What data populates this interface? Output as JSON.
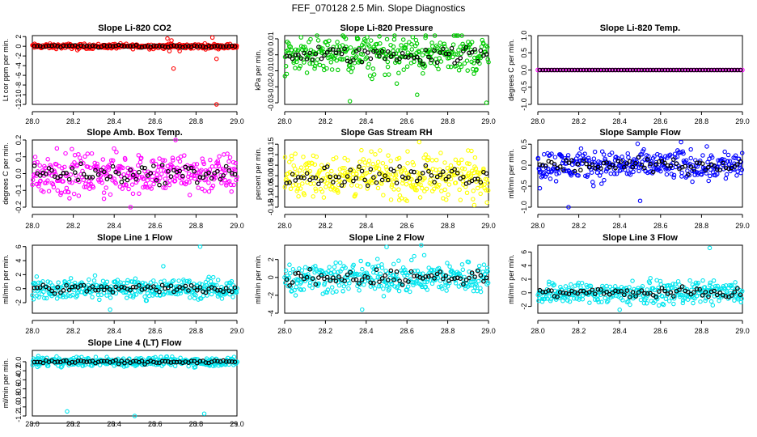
{
  "page_title": "FEF_070128  2.5 Min. Slope Diagnostics",
  "colors": {
    "background": "#ffffff",
    "axis": "#000000",
    "reference_points": "#000000"
  },
  "chart_data": [
    {
      "id": "co2",
      "type": "scatter",
      "title": "Slope Li-820 CO2",
      "ylabel": "Lt cor ppm per min.",
      "color": "#ff0000",
      "xlim": [
        28.0,
        29.0
      ],
      "ylim": [
        -12,
        2.2
      ],
      "yticks": [
        -12,
        -10,
        -8,
        -6,
        -4,
        -2,
        0,
        2
      ],
      "ytick_labels": [
        "-12",
        "-10",
        "-8",
        "-6",
        "-4",
        "-2",
        "0",
        "2"
      ],
      "xticks": [
        28.0,
        28.2,
        28.4,
        28.6,
        28.8,
        29.0
      ],
      "xtick_labels": [
        "28.0",
        "28.2",
        "28.4",
        "28.6",
        "28.8",
        "29.0"
      ],
      "typical_spread": 0.25,
      "outliers": [
        [
          28.66,
          1.6
        ],
        [
          28.68,
          1.2
        ],
        [
          28.67,
          -1.0
        ],
        [
          28.69,
          -4.6
        ],
        [
          28.72,
          -1.0
        ],
        [
          28.9,
          -2.6
        ],
        [
          28.9,
          -12.0
        ],
        [
          28.88,
          1.8
        ],
        [
          28.22,
          -0.8
        ]
      ]
    },
    {
      "id": "pressure",
      "type": "scatter",
      "title": "Slope Li-820 Pressure",
      "ylabel": "kPa per min.",
      "color": "#00cc00",
      "xlim": [
        28.0,
        29.0
      ],
      "ylim": [
        -0.031,
        0.012
      ],
      "yticks": [
        -0.03,
        -0.02,
        -0.01,
        0,
        0.01
      ],
      "ytick_labels": [
        "-0.03",
        "-0.02",
        "-0.01",
        "0.00",
        "0.01"
      ],
      "xticks": [
        28.0,
        28.2,
        28.4,
        28.6,
        28.8,
        29.0
      ],
      "xtick_labels": [
        "28.0",
        "28.2",
        "28.4",
        "28.6",
        "28.8",
        "29.0"
      ],
      "typical_spread": 0.006,
      "outliers": [
        [
          28.3,
          0.01
        ],
        [
          28.32,
          -0.029
        ],
        [
          28.65,
          -0.025
        ],
        [
          28.99,
          -0.03
        ],
        [
          28.01,
          -0.012
        ],
        [
          28.55,
          -0.018
        ]
      ]
    },
    {
      "id": "temp",
      "type": "scatter",
      "title": "Slope Li-820 Temp.",
      "ylabel": "degrees C per min.",
      "color": "#ff00ff",
      "xlim": [
        28.0,
        29.0
      ],
      "ylim": [
        -1.0,
        1.0
      ],
      "yticks": [
        -1,
        -0.5,
        0,
        0.5,
        1
      ],
      "ytick_labels": [
        "-1.0",
        "-0.5",
        "0.0",
        "0.5",
        "1.0"
      ],
      "xticks": [
        28.0,
        28.2,
        28.4,
        28.6,
        28.8,
        29.0
      ],
      "xtick_labels": [
        "28.0",
        "28.2",
        "28.4",
        "28.6",
        "28.8",
        "29.0"
      ],
      "typical_spread": 0.0,
      "outliers": []
    },
    {
      "id": "box_temp",
      "type": "scatter",
      "title": "Slope Amb. Box Temp.",
      "ylabel": "degrees C per min.",
      "color": "#ff00ff",
      "xlim": [
        28.0,
        29.0
      ],
      "ylim": [
        -0.2,
        0.2
      ],
      "yticks": [
        -0.2,
        -0.1,
        0,
        0.1,
        0.2
      ],
      "ytick_labels": [
        "-0.2",
        "-0.1",
        "0.0",
        "0.1",
        "0.2"
      ],
      "xticks": [
        28.0,
        28.2,
        28.4,
        28.6,
        28.8,
        29.0
      ],
      "xtick_labels": [
        "28.0",
        "28.2",
        "28.4",
        "28.6",
        "28.8",
        "29.0"
      ],
      "typical_spread": 0.06,
      "outliers": [
        [
          28.48,
          -0.2
        ],
        [
          28.7,
          0.2
        ],
        [
          28.12,
          0.15
        ],
        [
          28.35,
          -0.15
        ]
      ]
    },
    {
      "id": "rh",
      "type": "scatter",
      "title": "Slope Gas Stream RH",
      "ylabel": "percent per min.",
      "color": "#ffff00",
      "xlim": [
        28.0,
        29.0
      ],
      "ylim": [
        -0.15,
        0.17
      ],
      "yticks": [
        -0.15,
        -0.1,
        -0.05,
        0,
        0.05,
        0.1,
        0.15
      ],
      "ytick_labels": [
        "-0.15",
        "-0.10",
        "-0.05",
        "0.00",
        "0.05",
        "0.10",
        "0.15"
      ],
      "xticks": [
        28.0,
        28.2,
        28.4,
        28.6,
        28.8,
        29.0
      ],
      "xtick_labels": [
        "28.0",
        "28.2",
        "28.4",
        "28.6",
        "28.8",
        "29.0"
      ],
      "typical_spread": 0.05,
      "outliers": [
        [
          28.66,
          0.16
        ],
        [
          28.6,
          -0.12
        ],
        [
          28.93,
          -0.14
        ],
        [
          28.9,
          0.12
        ]
      ]
    },
    {
      "id": "sample_flow",
      "type": "scatter",
      "title": "Slope Sample Flow",
      "ylabel": "ml/min per min.",
      "color": "#0000ff",
      "xlim": [
        28.0,
        29.0
      ],
      "ylim": [
        -1.0,
        0.6
      ],
      "yticks": [
        -1,
        -0.5,
        0,
        0.5
      ],
      "ytick_labels": [
        "-1.0",
        "-0.5",
        "0.0",
        "0.5"
      ],
      "xticks": [
        28.0,
        28.2,
        28.4,
        28.6,
        28.8,
        29.0
      ],
      "xtick_labels": [
        "28.0",
        "28.2",
        "28.4",
        "28.6",
        "28.8",
        "29.0"
      ],
      "typical_spread": 0.18,
      "outliers": [
        [
          28.15,
          -1.0
        ],
        [
          28.5,
          -0.85
        ],
        [
          28.7,
          0.55
        ],
        [
          28.01,
          -0.55
        ]
      ]
    },
    {
      "id": "line1",
      "type": "scatter",
      "title": "Slope Line 1 Flow",
      "ylabel": "ml/min per min.",
      "color": "#00e5ee",
      "xlim": [
        28.0,
        29.0
      ],
      "ylim": [
        -3.5,
        6.2
      ],
      "yticks": [
        -2,
        0,
        2,
        4,
        6
      ],
      "ytick_labels": [
        "-2",
        "0",
        "2",
        "4",
        "6"
      ],
      "xticks": [
        28.0,
        28.2,
        28.4,
        28.6,
        28.8,
        29.0
      ],
      "xtick_labels": [
        "28.0",
        "28.2",
        "28.4",
        "28.6",
        "28.8",
        "29.0"
      ],
      "typical_spread": 0.7,
      "outliers": [
        [
          28.82,
          6.0
        ],
        [
          28.38,
          -3.0
        ],
        [
          28.64,
          3.2
        ]
      ]
    },
    {
      "id": "line2",
      "type": "scatter",
      "title": "Slope Line 2 Flow",
      "ylabel": "ml/min per min.",
      "color": "#00e5ee",
      "xlim": [
        28.0,
        29.0
      ],
      "ylim": [
        -4,
        3.6
      ],
      "yticks": [
        -4,
        -2,
        0,
        2
      ],
      "ytick_labels": [
        "-4",
        "-2",
        "0",
        "2"
      ],
      "xticks": [
        28.0,
        28.2,
        28.4,
        28.6,
        28.8,
        29.0
      ],
      "xtick_labels": [
        "28.0",
        "28.2",
        "28.4",
        "28.6",
        "28.8",
        "29.0"
      ],
      "typical_spread": 0.9,
      "outliers": [
        [
          28.38,
          -3.6
        ],
        [
          28.5,
          3.4
        ],
        [
          28.67,
          3.6
        ]
      ]
    },
    {
      "id": "line3",
      "type": "scatter",
      "title": "Slope Line 3 Flow",
      "ylabel": "ml/min per min.",
      "color": "#00e5ee",
      "xlim": [
        28.0,
        29.0
      ],
      "ylim": [
        -3,
        7
      ],
      "yticks": [
        -2,
        0,
        2,
        4,
        6
      ],
      "ytick_labels": [
        "-2",
        "0",
        "2",
        "4",
        "6"
      ],
      "xticks": [
        28.0,
        28.2,
        28.4,
        28.6,
        28.8,
        29.0
      ],
      "xtick_labels": [
        "28.0",
        "28.2",
        "28.4",
        "28.6",
        "28.8",
        "29.0"
      ],
      "typical_spread": 0.8,
      "outliers": [
        [
          28.84,
          6.6
        ],
        [
          28.4,
          -2.5
        ]
      ]
    },
    {
      "id": "line4",
      "type": "scatter",
      "title": "Slope Line 4 (LT) Flow",
      "ylabel": "ml/min per min.",
      "color": "#00e5ee",
      "xlim": [
        28.0,
        29.0
      ],
      "ylim": [
        -1.2,
        0.25
      ],
      "yticks": [
        -1.2,
        -1,
        -0.8,
        -0.6,
        -0.4,
        -0.2,
        0
      ],
      "ytick_labels": [
        "-1.2",
        "-1.0",
        "-0.8",
        "-0.6",
        "-0.4",
        "-0.2",
        "0.0"
      ],
      "xticks": [
        28.0,
        28.2,
        28.4,
        28.6,
        28.8,
        29.0
      ],
      "xtick_labels": [
        "28.0",
        "28.2",
        "28.4",
        "28.6",
        "28.8",
        "29.0"
      ],
      "typical_spread": 0.05,
      "outliers": [
        [
          28.17,
          -1.1
        ],
        [
          28.5,
          -1.2
        ],
        [
          28.84,
          -1.15
        ]
      ]
    }
  ]
}
